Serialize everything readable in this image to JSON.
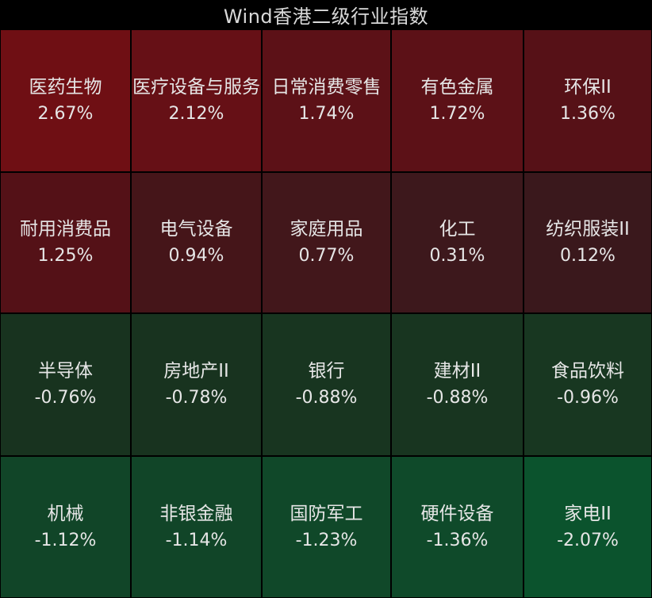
{
  "chart_data": {
    "type": "heatmap",
    "title": "Wind香港二级行业指数",
    "columns": 5,
    "rows": 4,
    "cells": [
      {
        "name": "医药生物",
        "value": 2.67,
        "label": "2.67%",
        "color": "#6f0f14"
      },
      {
        "name": "医疗设备与服务",
        "value": 2.12,
        "label": "2.12%",
        "color": "#661016"
      },
      {
        "name": "日常消费零售",
        "value": 1.74,
        "label": "1.74%",
        "color": "#5c1117"
      },
      {
        "name": "有色金属",
        "value": 1.72,
        "label": "1.72%",
        "color": "#5c1117"
      },
      {
        "name": "环保II",
        "value": 1.36,
        "label": "1.36%",
        "color": "#561117"
      },
      {
        "name": "耐用消费品",
        "value": 1.25,
        "label": "1.25%",
        "color": "#541117"
      },
      {
        "name": "电气设备",
        "value": 0.94,
        "label": "0.94%",
        "color": "#451519"
      },
      {
        "name": "家庭用品",
        "value": 0.77,
        "label": "0.77%",
        "color": "#42171b"
      },
      {
        "name": "化工",
        "value": 0.31,
        "label": "0.31%",
        "color": "#3d181c"
      },
      {
        "name": "纺织服装II",
        "value": 0.12,
        "label": "0.12%",
        "color": "#3a181c"
      },
      {
        "name": "半导体",
        "value": -0.76,
        "label": "-0.76%",
        "color": "#18331f"
      },
      {
        "name": "房地产II",
        "value": -0.78,
        "label": "-0.78%",
        "color": "#18331f"
      },
      {
        "name": "银行",
        "value": -0.88,
        "label": "-0.88%",
        "color": "#183520"
      },
      {
        "name": "建材II",
        "value": -0.88,
        "label": "-0.88%",
        "color": "#183520"
      },
      {
        "name": "食品饮料",
        "value": -0.96,
        "label": "-0.96%",
        "color": "#183721"
      },
      {
        "name": "机械",
        "value": -1.12,
        "label": "-1.12%",
        "color": "#114528"
      },
      {
        "name": "非银金融",
        "value": -1.14,
        "label": "-1.14%",
        "color": "#114528"
      },
      {
        "name": "国防军工",
        "value": -1.23,
        "label": "-1.23%",
        "color": "#104829"
      },
      {
        "name": "硬件设备",
        "value": -1.36,
        "label": "-1.36%",
        "color": "#0f4a2a"
      },
      {
        "name": "家电II",
        "value": -2.07,
        "label": "-2.07%",
        "color": "#0b532d"
      }
    ]
  }
}
